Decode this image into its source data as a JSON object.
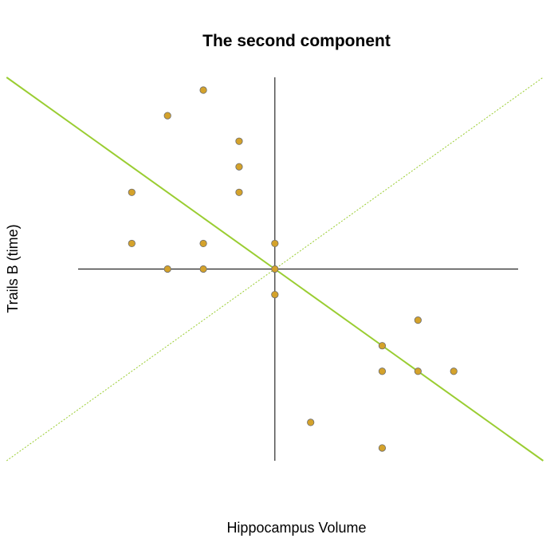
{
  "chart_data": {
    "type": "scatter",
    "title": "The second component",
    "xlabel": "Hippocampus Volume",
    "ylabel": "Trails B (time)",
    "xlim": [
      -5.5,
      6.8
    ],
    "ylim": [
      -7.5,
      7.5
    ],
    "grid": false,
    "legend": "none",
    "axes_through_origin": true,
    "lines": [
      {
        "slope": -1,
        "intercept": 0,
        "style": "solid",
        "color": "#9acd32"
      },
      {
        "slope": 1,
        "intercept": 0,
        "style": "dotted",
        "color": "#9acd32"
      }
    ],
    "point_color": "#d4a22b",
    "point_edge_color": "#6b6b6b",
    "points": [
      {
        "x": -2,
        "y": 7
      },
      {
        "x": -3,
        "y": 6
      },
      {
        "x": -1,
        "y": 5
      },
      {
        "x": -1,
        "y": 4
      },
      {
        "x": -4,
        "y": 3
      },
      {
        "x": -1,
        "y": 3
      },
      {
        "x": -4,
        "y": 1
      },
      {
        "x": -2,
        "y": 1
      },
      {
        "x": 0,
        "y": 1
      },
      {
        "x": -3,
        "y": 0
      },
      {
        "x": -2,
        "y": 0
      },
      {
        "x": 0,
        "y": 0
      },
      {
        "x": 0,
        "y": -1
      },
      {
        "x": 4,
        "y": -2
      },
      {
        "x": 3,
        "y": -3
      },
      {
        "x": 3,
        "y": -4
      },
      {
        "x": 4,
        "y": -4
      },
      {
        "x": 5,
        "y": -4
      },
      {
        "x": 1,
        "y": -6
      },
      {
        "x": 3,
        "y": -7
      }
    ]
  }
}
